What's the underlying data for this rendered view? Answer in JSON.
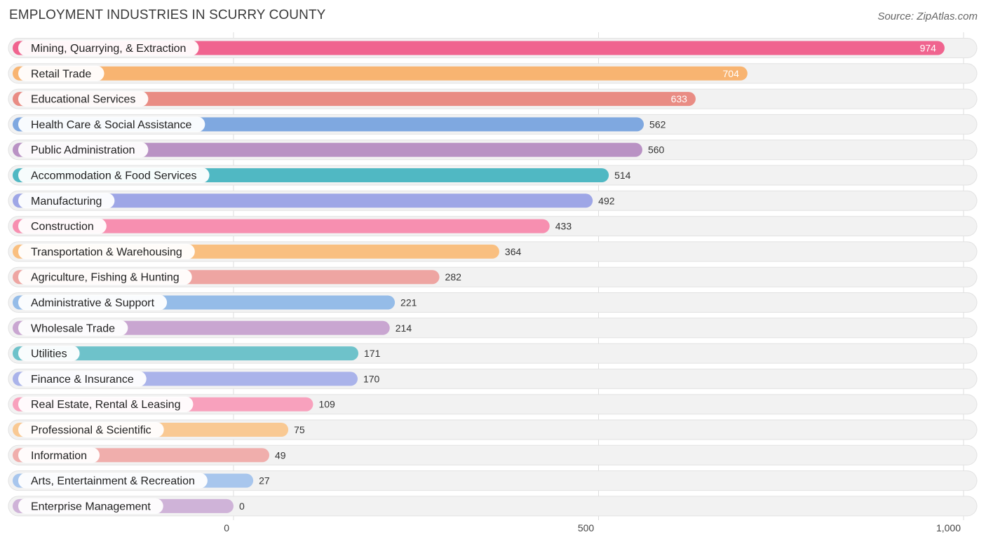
{
  "chart_data": {
    "type": "bar",
    "orientation": "horizontal",
    "title": "EMPLOYMENT INDUSTRIES IN SCURRY COUNTY",
    "source": "Source: ZipAtlas.com",
    "xlabel": "",
    "ylabel": "",
    "xlim": [
      0,
      1000
    ],
    "ticks": [
      0,
      500,
      1000
    ],
    "tick_labels": [
      "0",
      "500",
      "1,000"
    ],
    "grid": true,
    "categories": [
      "Mining, Quarrying, & Extraction",
      "Retail Trade",
      "Educational Services",
      "Health Care & Social Assistance",
      "Public Administration",
      "Accommodation & Food Services",
      "Manufacturing",
      "Construction",
      "Transportation & Warehousing",
      "Agriculture, Fishing & Hunting",
      "Administrative & Support",
      "Wholesale Trade",
      "Utilities",
      "Finance & Insurance",
      "Real Estate, Rental & Leasing",
      "Professional & Scientific",
      "Information",
      "Arts, Entertainment & Recreation",
      "Enterprise Management"
    ],
    "values": [
      974,
      704,
      633,
      562,
      560,
      514,
      492,
      433,
      364,
      282,
      221,
      214,
      171,
      170,
      109,
      75,
      49,
      27,
      0
    ],
    "value_labels": [
      "974",
      "704",
      "633",
      "562",
      "560",
      "514",
      "492",
      "433",
      "364",
      "282",
      "221",
      "214",
      "171",
      "170",
      "109",
      "75",
      "49",
      "27",
      "0"
    ],
    "colors": [
      "#f0648f",
      "#f8b471",
      "#e98c84",
      "#7fa8e0",
      "#b992c4",
      "#50b8c3",
      "#9ea6e6",
      "#f78fb0",
      "#f9bf80",
      "#eea5a2",
      "#95bce8",
      "#c9a6d1",
      "#6ec2ca",
      "#aab3ea",
      "#f8a1bd",
      "#f9c993",
      "#f0aeac",
      "#a8c6ed",
      "#cfb3d8"
    ]
  }
}
